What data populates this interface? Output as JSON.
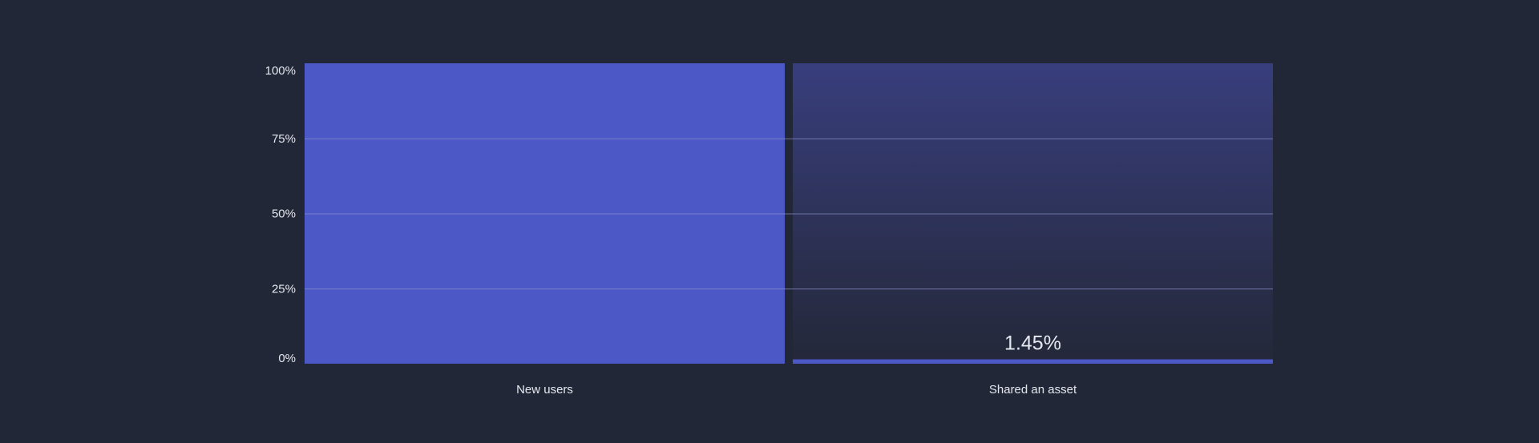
{
  "chart_data": {
    "type": "bar",
    "subtype": "funnel",
    "categories": [
      "New users",
      "Shared an asset"
    ],
    "values": [
      100,
      1.45
    ],
    "value_labels": [
      "",
      "1.45%"
    ],
    "y_ticks": [
      "0%",
      "25%",
      "50%",
      "75%",
      "100%"
    ],
    "ylim": [
      0,
      100
    ],
    "grid": true,
    "title": "",
    "xlabel": "",
    "ylabel": ""
  },
  "colors": {
    "background": "#222738",
    "bar": "#4c58c6",
    "remainder_top": "#383e7c",
    "remainder_bottom": "#242839",
    "gridline": "#8b90c8",
    "text": "#e6e8f0"
  }
}
